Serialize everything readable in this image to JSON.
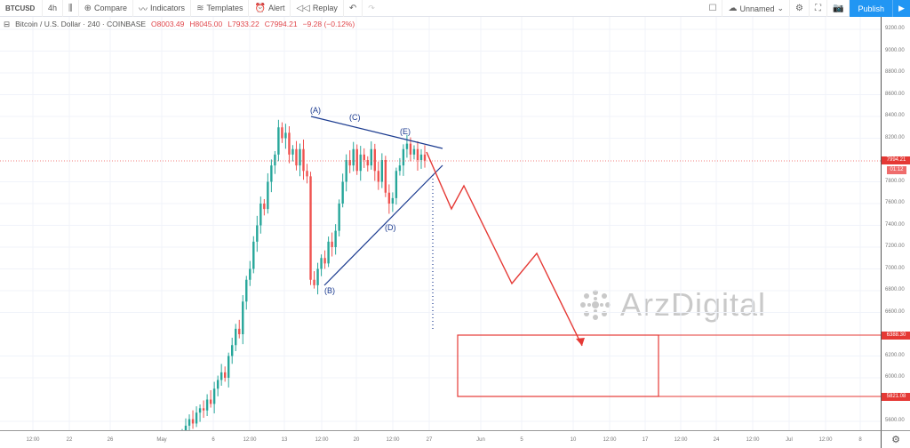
{
  "toolbar": {
    "symbol": "BTCUSD",
    "interval": "4h",
    "compare": "Compare",
    "indicators": "Indicators",
    "templates": "Templates",
    "alert": "Alert",
    "replay": "Replay",
    "layout_name": "Unnamed",
    "publish": "Publish"
  },
  "legend": {
    "title": "Bitcoin / U.S. Dollar · 240 · COINBASE",
    "open": "O8003.49",
    "high": "H8045.00",
    "low": "L7933.22",
    "close": "C7994.21",
    "change": "−9.28 (−0.12%)"
  },
  "price_axis": {
    "labels": [
      "9200.00",
      "9000.00",
      "8800.00",
      "8600.00",
      "8400.00",
      "8200.00",
      "7800.00",
      "7600.00",
      "7400.00",
      "7200.00",
      "7000.00",
      "6800.00",
      "6600.00",
      "6200.00",
      "6000.00",
      "5600.00"
    ],
    "current_price": "7994.21",
    "countdown": "01:12",
    "target_high": "6388.30",
    "target_low": "5821.08"
  },
  "time_axis": {
    "labels": [
      "12:00",
      "22",
      "26",
      "May",
      "6",
      "12:00",
      "13",
      "12:00",
      "20",
      "12:00",
      "27",
      "Jun",
      "5",
      "10",
      "12:00",
      "17",
      "12:00",
      "24",
      "12:00",
      "Jul",
      "12:00",
      "8"
    ]
  },
  "annotations": {
    "A": "(A)",
    "B": "(B)",
    "C": "(C)",
    "D": "(D)",
    "E": "(E)"
  },
  "watermark": "ArzDigital",
  "colors": {
    "up": "#26a69a",
    "down": "#ef5350",
    "annotation_line": "#1a3a8f",
    "projection": "#e53935",
    "accent": "#2196f3"
  },
  "candle_closes": [
    5500,
    5560,
    5620,
    5580,
    5680,
    5720,
    5700,
    5800,
    5760,
    5900,
    5980,
    6050,
    6000,
    6200,
    6300,
    6450,
    6400,
    6700,
    6900,
    7000,
    7250,
    7400,
    7600,
    7550,
    7800,
    7950,
    8050,
    8300,
    8200,
    8250,
    8050,
    8100,
    7950,
    8100,
    7900,
    7850,
    6900,
    6850,
    7000,
    7100,
    7050,
    7250,
    7200,
    7350,
    7600,
    7800,
    8000,
    7950,
    8100,
    7900,
    8050,
    8000,
    7950,
    8100,
    7900,
    7800,
    8000,
    7700,
    7600,
    7650,
    7900,
    7950,
    8100,
    8150,
    8050,
    8100,
    8000,
    8050,
    7994
  ]
}
